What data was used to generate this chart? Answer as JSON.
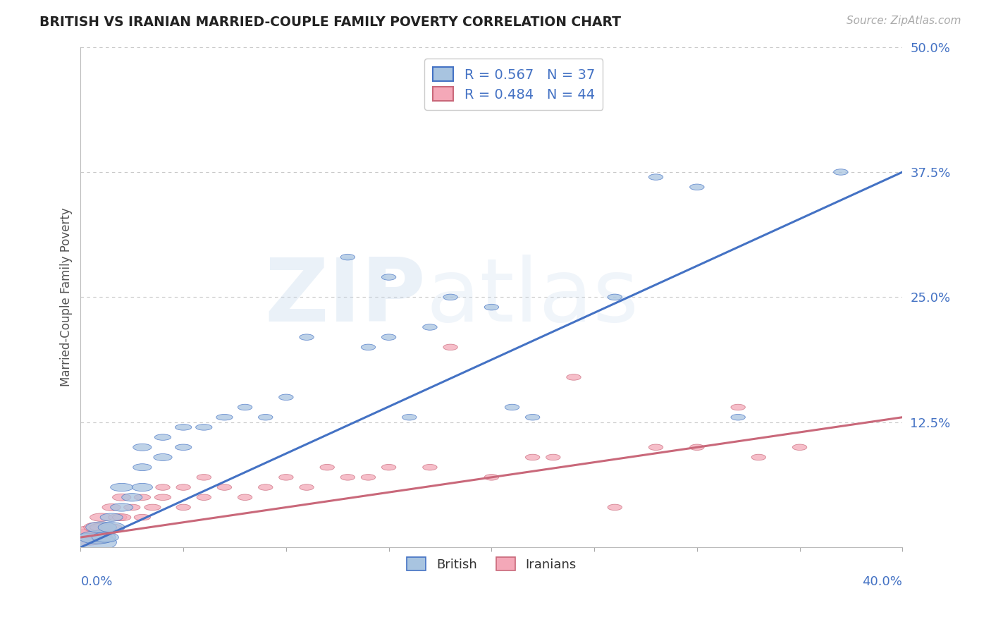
{
  "title": "BRITISH VS IRANIAN MARRIED-COUPLE FAMILY POVERTY CORRELATION CHART",
  "source_text": "Source: ZipAtlas.com",
  "ylabel": "Married-Couple Family Poverty",
  "xlim": [
    0.0,
    0.4
  ],
  "ylim": [
    0.0,
    0.5
  ],
  "yticks": [
    0.0,
    0.125,
    0.25,
    0.375,
    0.5
  ],
  "ytick_labels": [
    "",
    "12.5%",
    "25.0%",
    "37.5%",
    "50.0%"
  ],
  "legend_r_british": "R = 0.567",
  "legend_n_british": "N = 37",
  "legend_r_iranian": "R = 0.484",
  "legend_n_iranian": "N = 44",
  "british_color": "#a8c4e0",
  "iranian_color": "#f4a8b8",
  "british_line_color": "#4472c4",
  "iranian_line_color": "#c9687a",
  "watermark_zip": "ZIP",
  "watermark_atlas": "atlas",
  "background_color": "#ffffff",
  "grid_color": "#c8c8c8",
  "title_color": "#222222",
  "axis_label_color": "#4472c4",
  "british_line_x": [
    0.0,
    0.4
  ],
  "british_line_y": [
    0.0,
    0.375
  ],
  "iranian_line_x": [
    0.0,
    0.4
  ],
  "iranian_line_y": [
    0.01,
    0.13
  ],
  "british_x": [
    0.005,
    0.008,
    0.01,
    0.012,
    0.015,
    0.015,
    0.02,
    0.02,
    0.025,
    0.03,
    0.03,
    0.03,
    0.04,
    0.04,
    0.05,
    0.05,
    0.06,
    0.07,
    0.08,
    0.09,
    0.1,
    0.11,
    0.13,
    0.14,
    0.15,
    0.15,
    0.16,
    0.17,
    0.18,
    0.2,
    0.21,
    0.22,
    0.26,
    0.28,
    0.3,
    0.32,
    0.37
  ],
  "british_y": [
    0.005,
    0.01,
    0.02,
    0.01,
    0.02,
    0.03,
    0.04,
    0.06,
    0.05,
    0.06,
    0.08,
    0.1,
    0.09,
    0.11,
    0.1,
    0.12,
    0.12,
    0.13,
    0.14,
    0.13,
    0.15,
    0.21,
    0.29,
    0.2,
    0.27,
    0.21,
    0.13,
    0.22,
    0.25,
    0.24,
    0.14,
    0.13,
    0.25,
    0.37,
    0.36,
    0.13,
    0.375
  ],
  "british_w": [
    0.025,
    0.018,
    0.015,
    0.013,
    0.013,
    0.011,
    0.011,
    0.011,
    0.01,
    0.01,
    0.009,
    0.009,
    0.009,
    0.008,
    0.008,
    0.008,
    0.008,
    0.008,
    0.007,
    0.007,
    0.007,
    0.007,
    0.007,
    0.007,
    0.007,
    0.007,
    0.007,
    0.007,
    0.007,
    0.007,
    0.007,
    0.007,
    0.007,
    0.007,
    0.007,
    0.007,
    0.007
  ],
  "british_h": [
    0.018,
    0.013,
    0.011,
    0.01,
    0.01,
    0.008,
    0.008,
    0.008,
    0.008,
    0.008,
    0.007,
    0.007,
    0.007,
    0.006,
    0.006,
    0.006,
    0.006,
    0.006,
    0.006,
    0.006,
    0.006,
    0.006,
    0.006,
    0.006,
    0.006,
    0.006,
    0.006,
    0.006,
    0.006,
    0.006,
    0.006,
    0.006,
    0.006,
    0.006,
    0.006,
    0.006,
    0.006
  ],
  "iranian_x": [
    0.003,
    0.005,
    0.007,
    0.008,
    0.009,
    0.01,
    0.01,
    0.012,
    0.015,
    0.015,
    0.018,
    0.02,
    0.02,
    0.025,
    0.03,
    0.03,
    0.035,
    0.04,
    0.04,
    0.05,
    0.05,
    0.06,
    0.06,
    0.07,
    0.08,
    0.09,
    0.1,
    0.11,
    0.12,
    0.13,
    0.14,
    0.15,
    0.17,
    0.18,
    0.2,
    0.22,
    0.23,
    0.24,
    0.26,
    0.28,
    0.3,
    0.32,
    0.33,
    0.35
  ],
  "iranian_y": [
    0.01,
    0.015,
    0.01,
    0.02,
    0.01,
    0.02,
    0.03,
    0.015,
    0.02,
    0.04,
    0.03,
    0.03,
    0.05,
    0.04,
    0.03,
    0.05,
    0.04,
    0.05,
    0.06,
    0.04,
    0.06,
    0.05,
    0.07,
    0.06,
    0.05,
    0.06,
    0.07,
    0.06,
    0.08,
    0.07,
    0.07,
    0.08,
    0.08,
    0.2,
    0.07,
    0.09,
    0.09,
    0.17,
    0.04,
    0.1,
    0.1,
    0.14,
    0.09,
    0.1
  ],
  "iranian_w": [
    0.022,
    0.018,
    0.015,
    0.013,
    0.013,
    0.011,
    0.011,
    0.01,
    0.01,
    0.009,
    0.009,
    0.009,
    0.009,
    0.008,
    0.008,
    0.008,
    0.008,
    0.008,
    0.007,
    0.007,
    0.007,
    0.007,
    0.007,
    0.007,
    0.007,
    0.007,
    0.007,
    0.007,
    0.007,
    0.007,
    0.007,
    0.007,
    0.007,
    0.007,
    0.007,
    0.007,
    0.007,
    0.007,
    0.007,
    0.007,
    0.007,
    0.007,
    0.007,
    0.007
  ],
  "iranian_h": [
    0.016,
    0.013,
    0.011,
    0.01,
    0.01,
    0.008,
    0.008,
    0.007,
    0.007,
    0.007,
    0.007,
    0.007,
    0.007,
    0.006,
    0.006,
    0.006,
    0.006,
    0.006,
    0.006,
    0.006,
    0.006,
    0.006,
    0.006,
    0.006,
    0.006,
    0.006,
    0.006,
    0.006,
    0.006,
    0.006,
    0.006,
    0.006,
    0.006,
    0.006,
    0.006,
    0.006,
    0.006,
    0.006,
    0.006,
    0.006,
    0.006,
    0.006,
    0.006,
    0.006
  ]
}
